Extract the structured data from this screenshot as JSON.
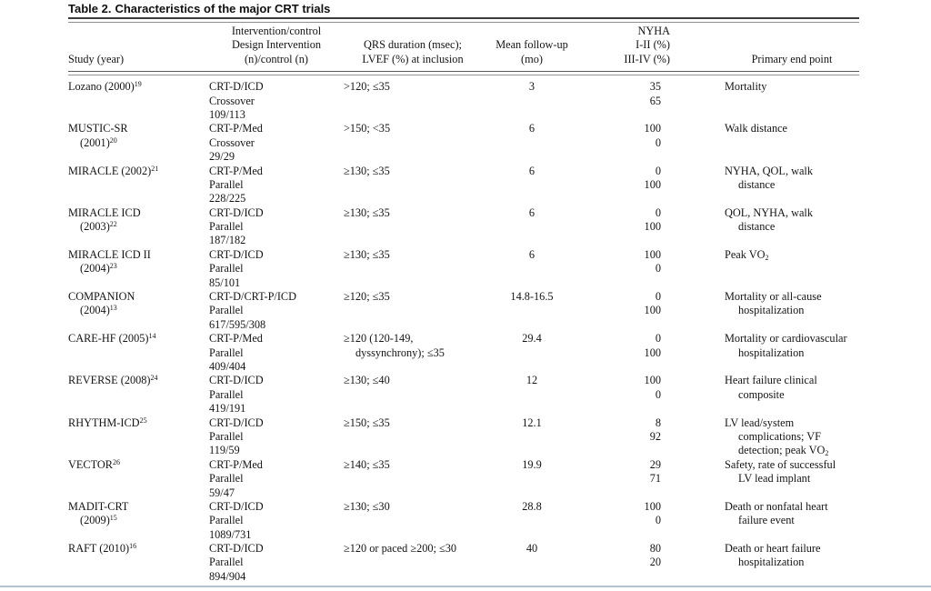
{
  "title": {
    "prefix": "Table 2.",
    "text": "Characteristics of the major CRT trials"
  },
  "table": {
    "columns": [
      {
        "id": "study",
        "header_lines": [
          "Study (year)"
        ]
      },
      {
        "id": "intervention",
        "header_lines": [
          "Intervention/control",
          "Design Intervention",
          "(n)/control (n)"
        ]
      },
      {
        "id": "qrs_lvef",
        "header_lines": [
          "QRS duration (msec);",
          "LVEF (%) at inclusion"
        ]
      },
      {
        "id": "followup",
        "header_lines": [
          "Mean follow-up",
          "(mo)"
        ]
      },
      {
        "id": "nyha",
        "header_lines": [
          "NYHA",
          "I-II (%)",
          "III-IV (%)"
        ]
      },
      {
        "id": "endpoint",
        "header_lines": [
          "Primary end point"
        ]
      }
    ],
    "rows": [
      {
        "study": [
          {
            "t": "Lozano (2000)",
            "sup": "19"
          }
        ],
        "intervention": [
          "CRT-D/ICD",
          "Crossover",
          "109/113"
        ],
        "qrs_lvef": [
          ">120; ≤35"
        ],
        "followup": [
          "3"
        ],
        "nyha": [
          "35",
          "65"
        ],
        "endpoint": [
          "Mortality"
        ]
      },
      {
        "study": [
          {
            "t": "MUSTIC-SR"
          },
          {
            "t": "(2001)",
            "sup": "20"
          }
        ],
        "intervention": [
          "CRT-P/Med",
          "Crossover",
          "29/29"
        ],
        "qrs_lvef": [
          ">150; <35"
        ],
        "followup": [
          "6"
        ],
        "nyha": [
          "100",
          "0"
        ],
        "endpoint": [
          "Walk distance"
        ]
      },
      {
        "study": [
          {
            "t": "MIRACLE (2002)",
            "sup": "21"
          }
        ],
        "intervention": [
          "CRT-P/Med",
          "Parallel",
          "228/225"
        ],
        "qrs_lvef": [
          "≥130; ≤35"
        ],
        "followup": [
          "6"
        ],
        "nyha": [
          "0",
          "100"
        ],
        "endpoint": [
          "NYHA, QOL, walk",
          "distance"
        ]
      },
      {
        "study": [
          {
            "t": "MIRACLE ICD"
          },
          {
            "t": "(2003)",
            "sup": "22"
          }
        ],
        "intervention": [
          "CRT-D/ICD",
          "Parallel",
          "187/182"
        ],
        "qrs_lvef": [
          "≥130; ≤35"
        ],
        "followup": [
          "6"
        ],
        "nyha": [
          "0",
          "100"
        ],
        "endpoint": [
          "QOL, NYHA, walk",
          "distance"
        ]
      },
      {
        "study": [
          {
            "t": "MIRACLE ICD II"
          },
          {
            "t": "(2004)",
            "sup": "23"
          }
        ],
        "intervention": [
          "CRT-D/ICD",
          "Parallel",
          "85/101"
        ],
        "qrs_lvef": [
          "≥130; ≤35"
        ],
        "followup": [
          "6"
        ],
        "nyha": [
          "100",
          "0"
        ],
        "endpoint": [
          {
            "t": "Peak VO",
            "sub": "2"
          }
        ]
      },
      {
        "study": [
          {
            "t": "COMPANION"
          },
          {
            "t": "(2004)",
            "sup": "13"
          }
        ],
        "intervention": [
          "CRT-D/CRT-P/ICD",
          "Parallel",
          "617/595/308"
        ],
        "qrs_lvef": [
          "≥120; ≤35"
        ],
        "followup": [
          "14.8-16.5"
        ],
        "nyha": [
          "0",
          "100"
        ],
        "endpoint": [
          "Mortality or all-cause",
          "hospitalization"
        ]
      },
      {
        "study": [
          {
            "t": "CARE-HF (2005)",
            "sup": "14"
          }
        ],
        "intervention": [
          "CRT-P/Med",
          "Parallel",
          "409/404"
        ],
        "qrs_lvef": [
          "≥120 (120-149,",
          "dyssynchrony); ≤35"
        ],
        "followup": [
          "29.4"
        ],
        "nyha": [
          "0",
          "100"
        ],
        "endpoint": [
          "Mortality or cardiovascular",
          "hospitalization"
        ]
      },
      {
        "study": [
          {
            "t": "REVERSE (2008)",
            "sup": "24"
          }
        ],
        "intervention": [
          "CRT-D/ICD",
          "Parallel",
          "419/191"
        ],
        "qrs_lvef": [
          "≥130; ≤40"
        ],
        "followup": [
          "12"
        ],
        "nyha": [
          "100",
          "0"
        ],
        "endpoint": [
          "Heart failure clinical",
          "composite"
        ]
      },
      {
        "study": [
          {
            "t": "RHYTHM-ICD",
            "sup": "25"
          }
        ],
        "intervention": [
          "CRT-D/ICD",
          "Parallel",
          "119/59"
        ],
        "qrs_lvef": [
          "≥150; ≤35"
        ],
        "followup": [
          "12.1"
        ],
        "nyha": [
          "8",
          "92"
        ],
        "endpoint": [
          "LV lead/system",
          "complications; VF",
          {
            "t": "detection; peak VO",
            "sub": "2"
          }
        ]
      },
      {
        "study": [
          {
            "t": "VECTOR",
            "sup": "26"
          }
        ],
        "intervention": [
          "CRT-P/Med",
          "Parallel",
          "59/47"
        ],
        "qrs_lvef": [
          "≥140; ≤35"
        ],
        "followup": [
          "19.9"
        ],
        "nyha": [
          "29",
          "71"
        ],
        "endpoint": [
          "Safety, rate of successful",
          "LV lead implant"
        ]
      },
      {
        "study": [
          {
            "t": "MADIT-CRT"
          },
          {
            "t": "(2009)",
            "sup": "15"
          }
        ],
        "intervention": [
          "CRT-D/ICD",
          "Parallel",
          "1089/731"
        ],
        "qrs_lvef": [
          "≥130; ≤30"
        ],
        "followup": [
          "28.8"
        ],
        "nyha": [
          "100",
          "0"
        ],
        "endpoint": [
          "Death or nonfatal heart",
          "failure event"
        ]
      },
      {
        "study": [
          {
            "t": "RAFT (2010)",
            "sup": "16"
          }
        ],
        "intervention": [
          "CRT-D/ICD",
          "Parallel",
          "894/904"
        ],
        "qrs_lvef": [
          "≥120 or paced ≥200; ≤30"
        ],
        "followup": [
          "40"
        ],
        "nyha": [
          "80",
          "20"
        ],
        "endpoint": [
          "Death or heart failure",
          "hospitalization"
        ]
      }
    ]
  }
}
